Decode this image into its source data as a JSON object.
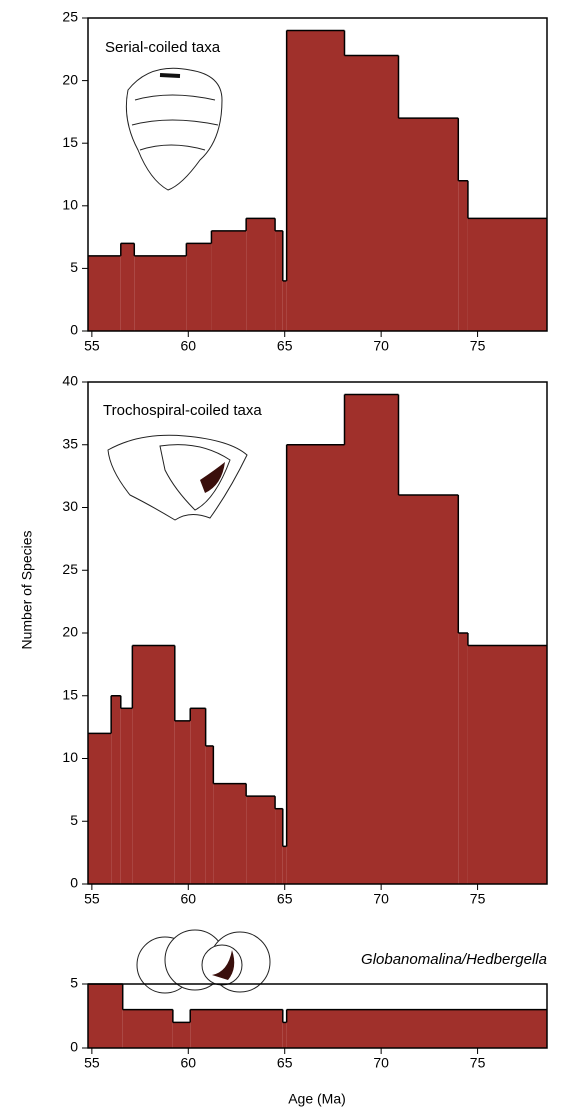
{
  "chart_data": [
    {
      "type": "histogram",
      "annotation": "Serial-coiled taxa",
      "color": "#a0302b",
      "bins": [
        54.8,
        56.5,
        57.2,
        59.9,
        61.2,
        63,
        64.5,
        64.9,
        65.1,
        68.1,
        70.9,
        74,
        74.5,
        78.6
      ],
      "values": [
        6,
        7,
        6,
        7,
        8,
        9,
        8,
        4,
        24,
        22,
        17,
        12,
        9
      ],
      "xlim": [
        54.8,
        78.6
      ],
      "ylim": [
        0,
        25
      ],
      "xticks": [
        55,
        60,
        65,
        70,
        75
      ],
      "yticks": [
        0,
        5,
        10,
        15,
        20,
        25
      ]
    },
    {
      "type": "histogram",
      "annotation": "Trochospiral-coiled taxa",
      "color": "#a0302b",
      "ylabel": "Number of Species",
      "bins": [
        54.8,
        56,
        56.5,
        57.1,
        59.3,
        60.1,
        60.9,
        61.3,
        63,
        64.5,
        64.9,
        65.1,
        68.1,
        70.9,
        74,
        74.5,
        78.6
      ],
      "values": [
        12,
        15,
        14,
        19,
        13,
        14,
        11,
        8,
        7,
        6,
        3,
        35,
        39,
        31,
        20,
        19
      ],
      "xlim": [
        54.8,
        78.6
      ],
      "ylim": [
        0,
        40
      ],
      "xticks": [
        55,
        60,
        65,
        70,
        75
      ],
      "yticks": [
        0,
        5,
        10,
        15,
        20,
        25,
        30,
        35,
        40
      ]
    },
    {
      "type": "histogram",
      "annotation": "Globanomalina/Hedbergella",
      "color": "#a0302b",
      "xlabel": "Age (Ma)",
      "bins": [
        54.8,
        56.6,
        59.2,
        60.1,
        64.9,
        65.1,
        78.6
      ],
      "values": [
        5,
        3,
        2,
        3,
        2,
        3
      ],
      "xlim": [
        54.8,
        78.6
      ],
      "ylim": [
        0,
        5
      ],
      "xticks": [
        55,
        60,
        65,
        70,
        75
      ],
      "yticks": [
        0,
        5
      ]
    }
  ]
}
